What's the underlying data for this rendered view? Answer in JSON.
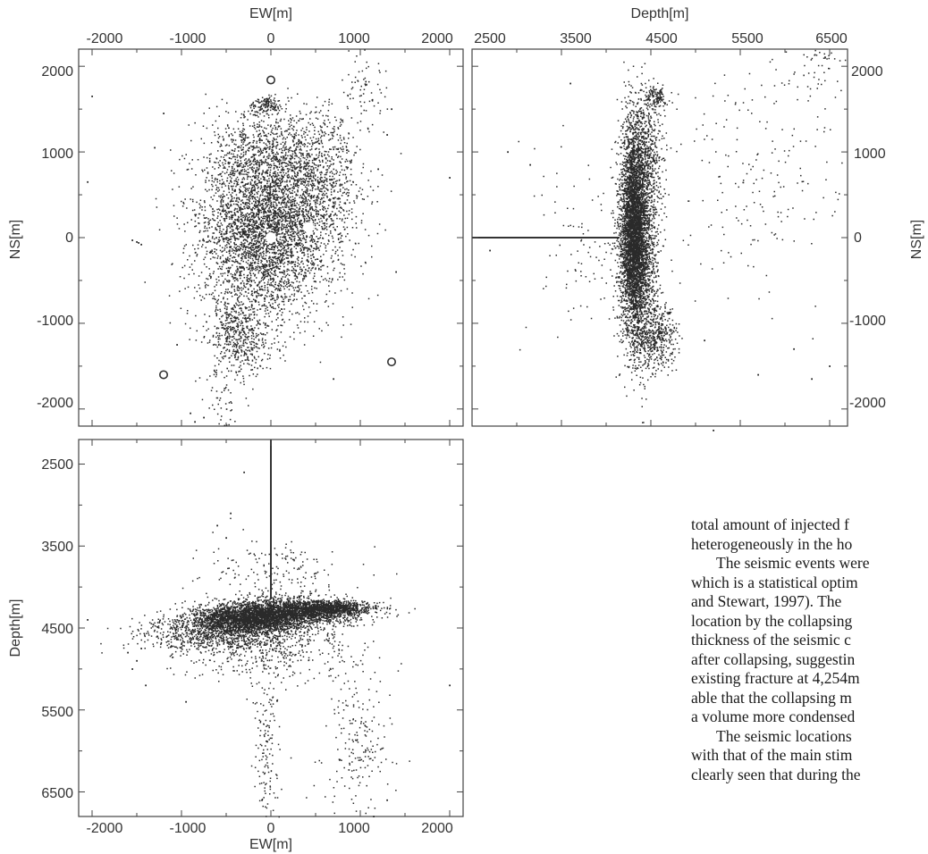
{
  "figure": {
    "panels": [
      {
        "id": "map-view",
        "x_label": "EW[m]",
        "y_label": "NS[m]",
        "x_ticks": [
          "-2000",
          "-1000",
          "0",
          "1000",
          "2000"
        ],
        "y_ticks": [
          "2000",
          "1000",
          "0",
          "-1000",
          "-2000"
        ],
        "x_ticks_position": "top",
        "y_ticks_position": "left"
      },
      {
        "id": "ns-depth-view",
        "x_label": "Depth[m]",
        "y_label": "NS[m]",
        "x_ticks": [
          "2500",
          "3500",
          "4500",
          "5500",
          "6500"
        ],
        "y_ticks": [
          "2000",
          "1000",
          "0",
          "-1000",
          "-2000"
        ],
        "x_ticks_position": "top",
        "y_ticks_position": "right"
      },
      {
        "id": "ew-depth-view",
        "x_label": "EW[m]",
        "y_label": "Depth[m]",
        "x_ticks": [
          "-2000",
          "-1000",
          "0",
          "1000",
          "2000"
        ],
        "y_ticks": [
          "2500",
          "3500",
          "4500",
          "5500",
          "6500"
        ],
        "x_ticks_position": "bottom",
        "y_ticks_position": "left"
      }
    ],
    "colors": {
      "points": "#2a2a2a",
      "frame": "#444444",
      "markers": "#ffffff"
    }
  },
  "chart_data": [
    {
      "type": "scatter",
      "xlabel": "EW[m]",
      "ylabel": "NS[m]",
      "xlim": [
        -2150,
        2150
      ],
      "ylim": [
        -2200,
        2200
      ],
      "clusters": [
        {
          "cx": -100,
          "cy": -50,
          "sx": 380,
          "sy": 480,
          "n": 2600
        },
        {
          "cx": 150,
          "cy": 350,
          "sx": 420,
          "sy": 380,
          "n": 1400
        },
        {
          "cx": 500,
          "cy": 900,
          "sx": 250,
          "sy": 350,
          "n": 500
        },
        {
          "cx": -100,
          "cy": 1000,
          "sx": 280,
          "sy": 250,
          "n": 600
        },
        {
          "cx": -50,
          "cy": 1550,
          "sx": 90,
          "sy": 60,
          "n": 130
        },
        {
          "cx": 1050,
          "cy": 1700,
          "sx": 130,
          "sy": 250,
          "n": 70
        },
        {
          "cx": -350,
          "cy": -1150,
          "sx": 170,
          "sy": 220,
          "n": 500
        },
        {
          "cx": -550,
          "cy": -1900,
          "sx": 110,
          "sy": 200,
          "n": 60
        }
      ],
      "scattered_points": [
        [
          -1500,
          -50
        ],
        [
          -1450,
          -80
        ],
        [
          -1550,
          -30
        ],
        [
          -1480,
          -60
        ],
        [
          -2050,
          650
        ],
        [
          -2000,
          1650
        ],
        [
          -1200,
          1450
        ],
        [
          -1300,
          1050
        ],
        [
          -1050,
          -1250
        ],
        [
          2000,
          700
        ],
        [
          1350,
          1500
        ],
        [
          1300,
          1200
        ],
        [
          1200,
          800
        ],
        [
          1400,
          -400
        ],
        [
          700,
          -1650
        ],
        [
          -900,
          -2050
        ],
        [
          -850,
          -2150
        ],
        [
          -750,
          -2100
        ]
      ],
      "markers": [
        {
          "kind": "filled",
          "x": 0,
          "y": 0
        },
        {
          "kind": "filled",
          "x": 420,
          "y": 120
        },
        {
          "kind": "open",
          "x": 0,
          "y": 1840
        },
        {
          "kind": "open",
          "x": -1200,
          "y": -1600
        },
        {
          "kind": "open",
          "x": 1350,
          "y": -1450
        }
      ]
    },
    {
      "type": "scatter",
      "xlabel": "Depth[m]",
      "ylabel": "NS[m]",
      "xlim": [
        2500,
        6700
      ],
      "ylim": [
        -2200,
        2200
      ],
      "clusters": [
        {
          "cx": 4300,
          "cy": 100,
          "sx": 65,
          "sy": 560,
          "n": 2600
        },
        {
          "cx": 4350,
          "cy": -100,
          "sx": 110,
          "sy": 620,
          "n": 2400
        },
        {
          "cx": 4400,
          "cy": 1000,
          "sx": 110,
          "sy": 350,
          "n": 600
        },
        {
          "cx": 4560,
          "cy": -1150,
          "sx": 110,
          "sy": 180,
          "n": 400
        },
        {
          "cx": 4550,
          "cy": 1650,
          "sx": 60,
          "sy": 70,
          "n": 120
        },
        {
          "cx": 5800,
          "cy": 700,
          "sx": 600,
          "sy": 700,
          "n": 220
        },
        {
          "cx": 3800,
          "cy": -50,
          "sx": 300,
          "sy": 600,
          "n": 100
        },
        {
          "cx": 6400,
          "cy": 2050,
          "sx": 200,
          "sy": 180,
          "n": 60
        }
      ],
      "scattered_points": [
        [
          3600,
          1800
        ],
        [
          2900,
          1000
        ],
        [
          3150,
          850
        ],
        [
          2700,
          -150
        ],
        [
          5200,
          -2250
        ],
        [
          6100,
          -1300
        ],
        [
          6300,
          -1650
        ],
        [
          5700,
          -1600
        ],
        [
          6500,
          -1500
        ],
        [
          5100,
          -1200
        ]
      ],
      "well": {
        "x1": 2500,
        "x2": 4150,
        "y": 0
      }
    },
    {
      "type": "scatter",
      "xlabel": "EW[m]",
      "ylabel": "Depth[m]",
      "xlim": [
        -2150,
        2150
      ],
      "ylim": [
        2200,
        6800
      ],
      "clusters": [
        {
          "cx": -250,
          "cy": 4380,
          "sx": 320,
          "sy": 85,
          "n": 2200
        },
        {
          "cx": 250,
          "cy": 4300,
          "sx": 380,
          "sy": 85,
          "n": 1800
        },
        {
          "cx": 700,
          "cy": 4250,
          "sx": 220,
          "sy": 45,
          "n": 700
        },
        {
          "cx": -600,
          "cy": 4550,
          "sx": 420,
          "sy": 110,
          "n": 900
        },
        {
          "cx": -50,
          "cy": 4700,
          "sx": 500,
          "sy": 220,
          "n": 500
        },
        {
          "cx": -50,
          "cy": 5800,
          "sx": 80,
          "sy": 500,
          "n": 150
        },
        {
          "cx": 950,
          "cy": 5900,
          "sx": 200,
          "sy": 450,
          "n": 200
        },
        {
          "cx": 50,
          "cy": 3800,
          "sx": 420,
          "sy": 220,
          "n": 180
        }
      ],
      "scattered_points": [
        [
          -1500,
          4900
        ],
        [
          -1550,
          5000
        ],
        [
          -1450,
          4750
        ],
        [
          -1400,
          5200
        ],
        [
          -1600,
          4800
        ],
        [
          -2050,
          4400
        ],
        [
          -600,
          3250
        ],
        [
          -500,
          3400
        ],
        [
          -300,
          2600
        ],
        [
          -450,
          3100
        ],
        [
          2000,
          5200
        ],
        [
          1300,
          6600
        ],
        [
          1150,
          6800
        ],
        [
          -100,
          6600
        ],
        [
          -950,
          5400
        ]
      ],
      "well": {
        "x": 0,
        "y1": 2200,
        "y2": 4150
      }
    }
  ],
  "body_text": {
    "lines": [
      "total amount of injected f",
      "heterogeneously in the ho",
      "The seismic events were",
      "which is a statistical optim",
      "and Stewart, 1997).  The",
      "location by the collapsing",
      "thickness of the seismic c",
      "after collapsing, suggestin",
      "existing fracture at 4,254m",
      "able that the collapsing m",
      "a volume more condensed",
      "The seismic locations",
      "with that of the main stim",
      "clearly seen that during the"
    ]
  }
}
